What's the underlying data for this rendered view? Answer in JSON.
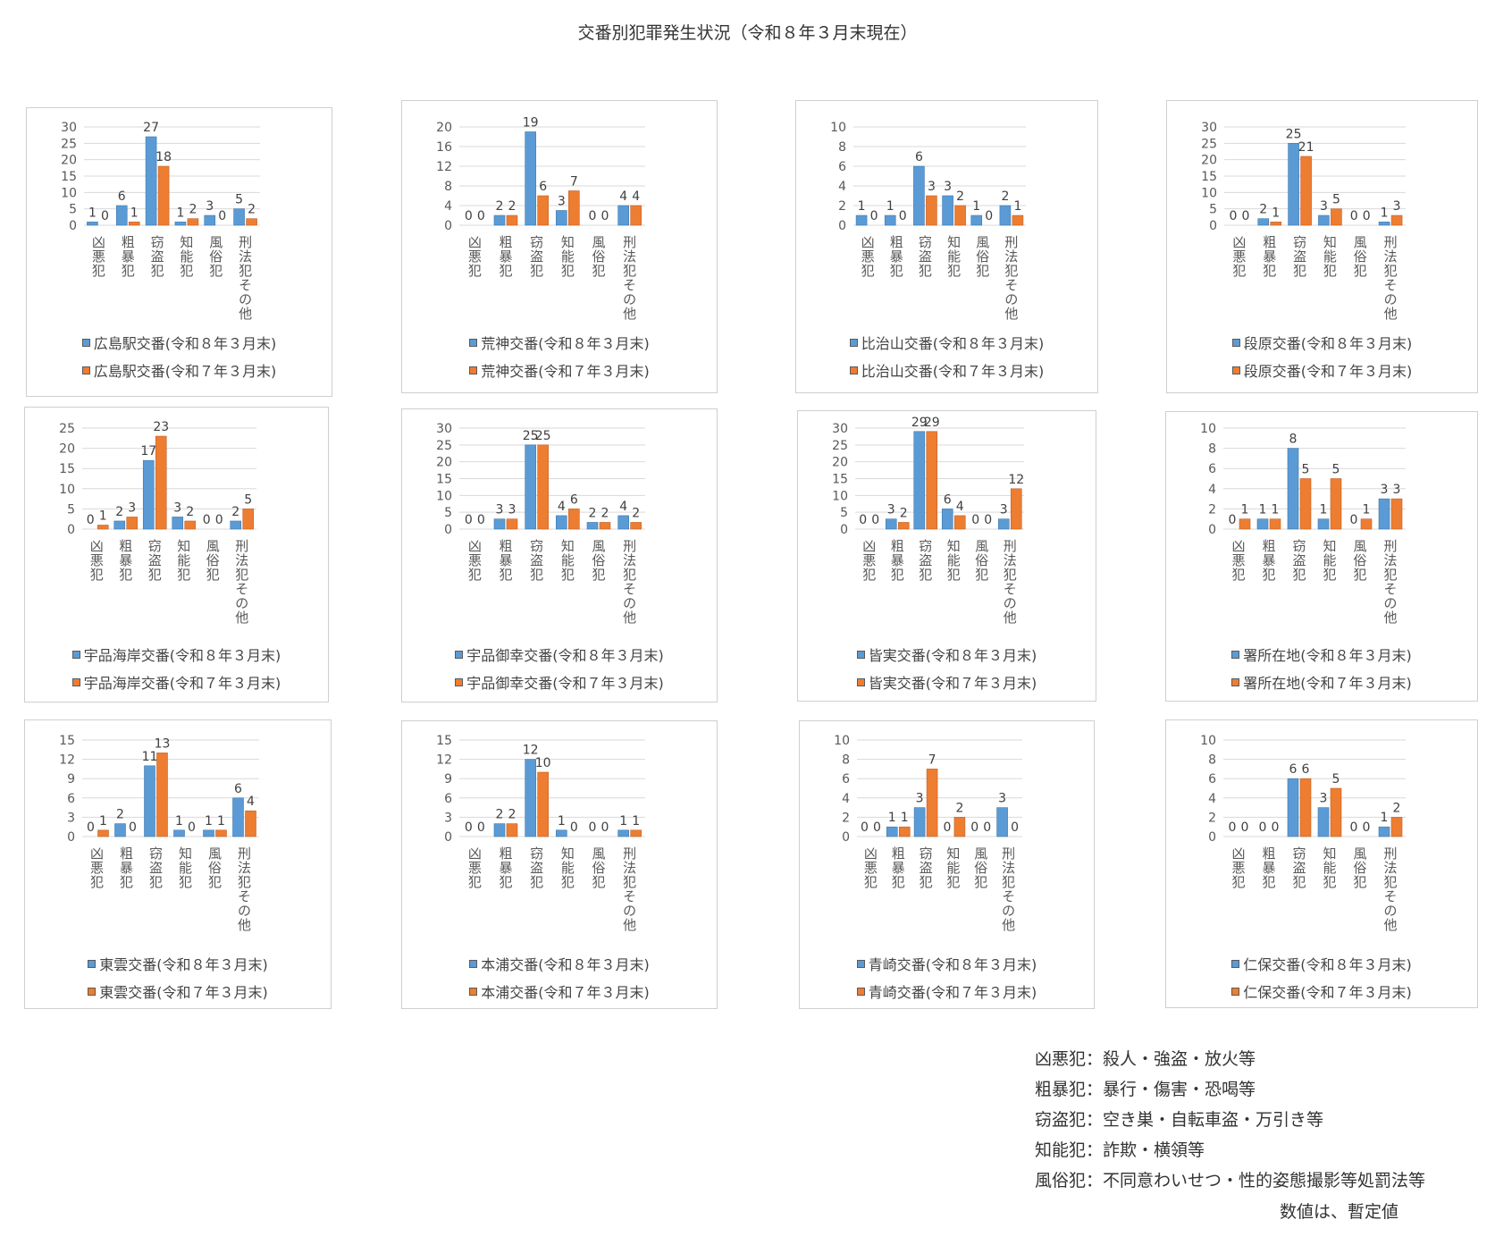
{
  "page_title": "交番別犯罪発生状況（令和８年３月末現在）",
  "colors": {
    "current": "#5b9bd5",
    "previous": "#ed7d31",
    "grid": "#d9d9d9",
    "tick": "#595959",
    "label": "#404040"
  },
  "categories": [
    "凶悪犯",
    "粗暴犯",
    "窃盗犯",
    "知能犯",
    "風俗犯",
    "刑法犯その他"
  ],
  "chart_data": [
    {
      "type": "bar",
      "title": "広島駅交番",
      "categories": [
        "凶悪犯",
        "粗暴犯",
        "窃盗犯",
        "知能犯",
        "風俗犯",
        "刑法犯その他"
      ],
      "ylim": [
        0,
        30
      ],
      "yticks": [
        0,
        5,
        10,
        15,
        20,
        25,
        30
      ],
      "series": [
        {
          "name": "広島駅交番(令和８年３月末)",
          "values": [
            1,
            6,
            27,
            1,
            3,
            5
          ]
        },
        {
          "name": "広島駅交番(令和７年３月末)",
          "values": [
            0,
            1,
            18,
            2,
            0,
            2
          ]
        }
      ]
    },
    {
      "type": "bar",
      "title": "荒神交番",
      "categories": [
        "凶悪犯",
        "粗暴犯",
        "窃盗犯",
        "知能犯",
        "風俗犯",
        "刑法犯その他"
      ],
      "ylim": [
        0,
        20
      ],
      "yticks": [
        0,
        4,
        8,
        12,
        16,
        20
      ],
      "series": [
        {
          "name": "荒神交番(令和８年３月末)",
          "values": [
            0,
            2,
            19,
            3,
            0,
            4
          ]
        },
        {
          "name": "荒神交番(令和７年３月末)",
          "values": [
            0,
            2,
            6,
            7,
            0,
            4
          ]
        }
      ]
    },
    {
      "type": "bar",
      "title": "比治山交番",
      "categories": [
        "凶悪犯",
        "粗暴犯",
        "窃盗犯",
        "知能犯",
        "風俗犯",
        "刑法犯その他"
      ],
      "ylim": [
        0,
        10
      ],
      "yticks": [
        0,
        2,
        4,
        6,
        8,
        10
      ],
      "series": [
        {
          "name": "比治山交番(令和８年３月末)",
          "values": [
            1,
            1,
            6,
            3,
            1,
            2
          ]
        },
        {
          "name": "比治山交番(令和７年３月末)",
          "values": [
            0,
            0,
            3,
            2,
            0,
            1
          ]
        }
      ]
    },
    {
      "type": "bar",
      "title": "段原交番",
      "categories": [
        "凶悪犯",
        "粗暴犯",
        "窃盗犯",
        "知能犯",
        "風俗犯",
        "刑法犯その他"
      ],
      "ylim": [
        0,
        30
      ],
      "yticks": [
        0,
        5,
        10,
        15,
        20,
        25,
        30
      ],
      "series": [
        {
          "name": "段原交番(令和８年３月末)",
          "values": [
            0,
            2,
            25,
            3,
            0,
            1
          ]
        },
        {
          "name": "段原交番(令和７年３月末)",
          "values": [
            0,
            1,
            21,
            5,
            0,
            3
          ]
        }
      ]
    },
    {
      "type": "bar",
      "title": "宇品海岸交番",
      "categories": [
        "凶悪犯",
        "粗暴犯",
        "窃盗犯",
        "知能犯",
        "風俗犯",
        "刑法犯その他"
      ],
      "ylim": [
        0,
        25
      ],
      "yticks": [
        0,
        5,
        10,
        15,
        20,
        25
      ],
      "series": [
        {
          "name": "宇品海岸交番(令和８年３月末)",
          "values": [
            0,
            2,
            17,
            3,
            0,
            2
          ]
        },
        {
          "name": "宇品海岸交番(令和７年３月末)",
          "values": [
            1,
            3,
            23,
            2,
            0,
            5
          ]
        }
      ]
    },
    {
      "type": "bar",
      "title": "宇品御幸交番",
      "categories": [
        "凶悪犯",
        "粗暴犯",
        "窃盗犯",
        "知能犯",
        "風俗犯",
        "刑法犯その他"
      ],
      "ylim": [
        0,
        30
      ],
      "yticks": [
        0,
        5,
        10,
        15,
        20,
        25,
        30
      ],
      "series": [
        {
          "name": "宇品御幸交番(令和８年３月末)",
          "values": [
            0,
            3,
            25,
            4,
            2,
            4
          ]
        },
        {
          "name": "宇品御幸交番(令和７年３月末)",
          "values": [
            0,
            3,
            25,
            6,
            2,
            2
          ]
        }
      ]
    },
    {
      "type": "bar",
      "title": "皆実交番",
      "categories": [
        "凶悪犯",
        "粗暴犯",
        "窃盗犯",
        "知能犯",
        "風俗犯",
        "刑法犯その他"
      ],
      "ylim": [
        0,
        30
      ],
      "yticks": [
        0,
        5,
        10,
        15,
        20,
        25,
        30
      ],
      "series": [
        {
          "name": "皆実交番(令和８年３月末)",
          "values": [
            0,
            3,
            29,
            6,
            0,
            3
          ]
        },
        {
          "name": "皆実交番(令和７年３月末)",
          "values": [
            0,
            2,
            29,
            4,
            0,
            12
          ]
        }
      ]
    },
    {
      "type": "bar",
      "title": "署所在地",
      "categories": [
        "凶悪犯",
        "粗暴犯",
        "窃盗犯",
        "知能犯",
        "風俗犯",
        "刑法犯その他"
      ],
      "ylim": [
        0,
        10
      ],
      "yticks": [
        0,
        2,
        4,
        6,
        8,
        10
      ],
      "series": [
        {
          "name": "署所在地(令和８年３月末)",
          "values": [
            0,
            1,
            8,
            1,
            0,
            3
          ]
        },
        {
          "name": "署所在地(令和７年３月末)",
          "values": [
            1,
            1,
            5,
            5,
            1,
            3
          ]
        }
      ]
    },
    {
      "type": "bar",
      "title": "東雲交番",
      "categories": [
        "凶悪犯",
        "粗暴犯",
        "窃盗犯",
        "知能犯",
        "風俗犯",
        "刑法犯その他"
      ],
      "ylim": [
        0,
        15
      ],
      "yticks": [
        0,
        3,
        6,
        9,
        12,
        15
      ],
      "series": [
        {
          "name": "東雲交番(令和８年３月末)",
          "values": [
            0,
            2,
            11,
            1,
            1,
            6
          ]
        },
        {
          "name": "東雲交番(令和７年３月末)",
          "values": [
            1,
            0,
            13,
            0,
            1,
            4
          ]
        }
      ]
    },
    {
      "type": "bar",
      "title": "本浦交番",
      "categories": [
        "凶悪犯",
        "粗暴犯",
        "窃盗犯",
        "知能犯",
        "風俗犯",
        "刑法犯その他"
      ],
      "ylim": [
        0,
        15
      ],
      "yticks": [
        0,
        3,
        6,
        9,
        12,
        15
      ],
      "series": [
        {
          "name": "本浦交番(令和８年３月末)",
          "values": [
            0,
            2,
            12,
            1,
            0,
            1
          ]
        },
        {
          "name": "本浦交番(令和７年３月末)",
          "values": [
            0,
            2,
            10,
            0,
            0,
            1
          ]
        }
      ]
    },
    {
      "type": "bar",
      "title": "青崎交番",
      "categories": [
        "凶悪犯",
        "粗暴犯",
        "窃盗犯",
        "知能犯",
        "風俗犯",
        "刑法犯その他"
      ],
      "ylim": [
        0,
        10
      ],
      "yticks": [
        0,
        2,
        4,
        6,
        8,
        10
      ],
      "series": [
        {
          "name": "青崎交番(令和８年３月末)",
          "values": [
            0,
            1,
            3,
            0,
            0,
            3
          ]
        },
        {
          "name": "青崎交番(令和７年３月末)",
          "values": [
            0,
            1,
            7,
            2,
            0,
            0
          ]
        }
      ]
    },
    {
      "type": "bar",
      "title": "仁保交番",
      "categories": [
        "凶悪犯",
        "粗暴犯",
        "窃盗犯",
        "知能犯",
        "風俗犯",
        "刑法犯その他"
      ],
      "ylim": [
        0,
        10
      ],
      "yticks": [
        0,
        2,
        4,
        6,
        8,
        10
      ],
      "series": [
        {
          "name": "仁保交番(令和８年３月末)",
          "values": [
            0,
            0,
            6,
            3,
            0,
            1
          ]
        },
        {
          "name": "仁保交番(令和７年３月末)",
          "values": [
            0,
            0,
            6,
            5,
            0,
            2
          ]
        }
      ]
    }
  ],
  "notes": [
    {
      "term": "凶悪犯",
      "desc": "：殺人・強盗・放火等"
    },
    {
      "term": "粗暴犯",
      "desc": "：暴行・傷害・恐喝等"
    },
    {
      "term": "窃盗犯",
      "desc": "：空き巣・自転車盗・万引き等"
    },
    {
      "term": "知能犯",
      "desc": "：詐欺・横領等"
    },
    {
      "term": "風俗犯",
      "desc": "：不同意わいせつ・性的姿態撮影等処罰法等"
    }
  ],
  "provisional_note": "数値は、暫定値"
}
